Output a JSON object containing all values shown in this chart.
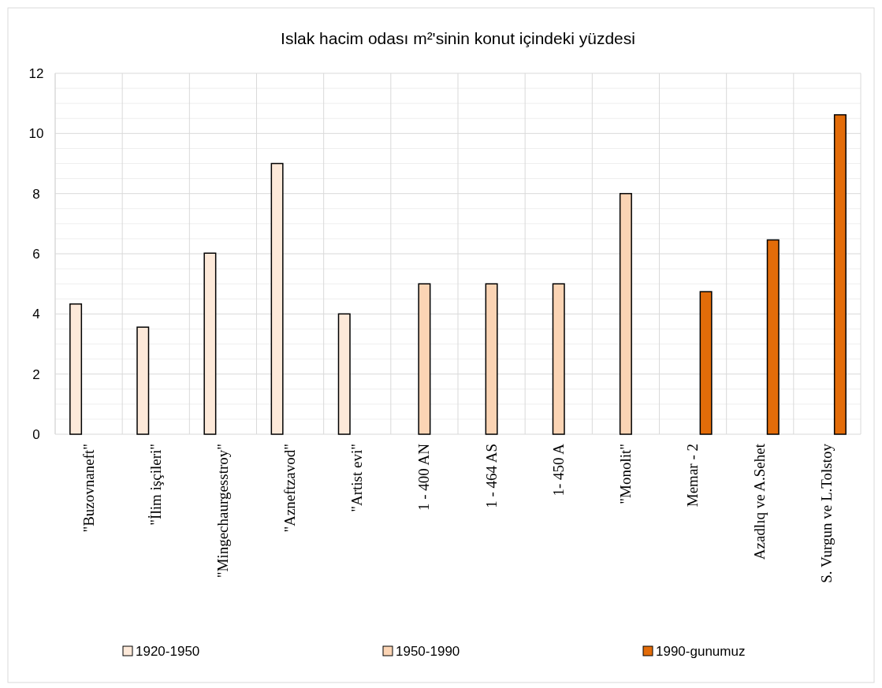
{
  "chart_data": {
    "type": "bar",
    "title": "Islak hacim odası m²'sinin konut içindeki yüzdesi",
    "categories": [
      "\"Buzovnaneft\"",
      "\"İlim işçileri\"",
      "\"Mingechaurgesstroy\"",
      "\"Azneftzavod\"",
      "\"Artist evi\"",
      "1 - 400 AN",
      "1 - 464 AS",
      "1- 450 A",
      "\"Monolit\"",
      "Memar - 2",
      "Azadlıq ve A.Sehet",
      "S. Vurgun ve L.Tolstoy"
    ],
    "series": [
      {
        "name": "1920-1950",
        "color": "#fde9d9",
        "values": [
          4.33,
          3.56,
          6.02,
          9,
          4,
          null,
          null,
          null,
          null,
          null,
          null,
          null
        ]
      },
      {
        "name": "1950-1990",
        "color": "#fbd4b4",
        "values": [
          null,
          null,
          null,
          null,
          null,
          5,
          5,
          5,
          8,
          null,
          null,
          null
        ]
      },
      {
        "name": "1990-gunumuz",
        "color": "#e36c09",
        "values": [
          null,
          null,
          null,
          null,
          null,
          null,
          null,
          null,
          null,
          4.74,
          6.46,
          10.62
        ]
      }
    ],
    "ylim": [
      0,
      12
    ],
    "yticks": [
      0,
      2,
      4,
      6,
      8,
      10,
      12
    ],
    "grid": true,
    "legend": "bottom"
  }
}
